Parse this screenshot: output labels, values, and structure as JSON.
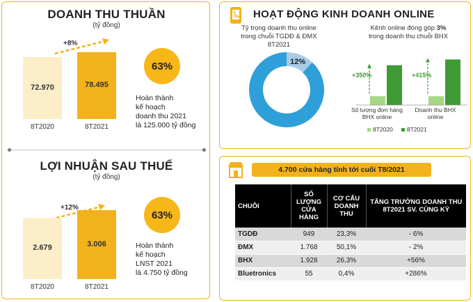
{
  "revenue": {
    "title": "DOANH THU THUẦN",
    "unit": "(tỷ đồng)",
    "growth": "+8%",
    "completion": "63%",
    "note_lines": [
      "Hoàn thành",
      "kế hoạch",
      "doanh thu 2021",
      "là 125.000 tỷ đồng"
    ]
  },
  "profit": {
    "title": "LỢI NHUẬN SAU THUẾ",
    "unit": "(tỷ đồng)",
    "growth": "+12%",
    "completion": "63%",
    "note_lines": [
      "Hoàn thành",
      "kế hoạch",
      "LNST 2021",
      "là 4.750 tỷ đồng"
    ]
  },
  "online": {
    "title": "HOẠT ĐỘNG KINH DOANH ONLINE",
    "share_caption": [
      "Tỷ trọng doanh thu online",
      "trong chuỗi TGDĐ & ĐMX",
      "8T2021"
    ],
    "bhx_caption_1": "Kênh online đóng góp",
    "bhx_caption_pct": "3%",
    "bhx_caption_2": "trong doanh thu chuỗi BHX",
    "growth_orders": "+350%",
    "growth_revenue": "+415%",
    "xlabel_orders": [
      "Số lượng đơn hàng",
      "BHX online"
    ],
    "xlabel_revenue": [
      "Doanh thu BHX",
      "online"
    ]
  },
  "stores": {
    "banner": "4.700 cửa hàng tính tới cuối T8/2021",
    "headers": [
      "CHUỖI",
      "SỐ LƯỢNG CỬA HÀNG",
      "CƠ CẤU DOANH THU",
      "TĂNG TRƯỞNG DOANH THU 8T2021 SV. CÙNG KỲ"
    ],
    "rows": [
      [
        "TGDĐ",
        "949",
        "23,3%",
        "- 6%"
      ],
      [
        "ĐMX",
        "1.768",
        "50,1%",
        "- 2%"
      ],
      [
        "BHX",
        "1.928",
        "26,3%",
        "+56%"
      ],
      [
        "Bluetronics",
        "55",
        "0,4%",
        "+286%"
      ]
    ]
  },
  "chart_data": [
    {
      "type": "bar",
      "title": "DOANH THU THUẦN",
      "subtitle": "(tỷ đồng)",
      "categories": [
        "8T2020",
        "8T2021"
      ],
      "values": [
        72970,
        78495
      ],
      "value_labels": [
        "72.970",
        "78.495"
      ],
      "ylim": [
        0,
        80000
      ],
      "colors": [
        "#fbeec8",
        "#f2b21c"
      ]
    },
    {
      "type": "bar",
      "title": "LỢI NHUẬN SAU THUẾ",
      "subtitle": "(tỷ đồng)",
      "categories": [
        "8T2020",
        "8T2021"
      ],
      "values": [
        2679,
        3006
      ],
      "value_labels": [
        "2.679",
        "3.006"
      ],
      "ylim": [
        0,
        3100
      ],
      "colors": [
        "#fbeec8",
        "#f2b21c"
      ]
    },
    {
      "type": "pie",
      "title": "Tỷ trọng doanh thu online trong chuỗi TGDĐ & ĐMX 8T2021",
      "values": [
        12,
        88
      ],
      "value_labels": [
        "12%",
        ""
      ],
      "colors": [
        "#a9cbe8",
        "#2e9fd8"
      ]
    },
    {
      "type": "bar",
      "categories": [
        "Số lượng đơn hàng BHX online",
        "Doanh thu BHX online"
      ],
      "series": [
        {
          "name": "8T2020",
          "values": [
            1,
            1
          ],
          "color": "#a6d783"
        },
        {
          "name": "8T2021",
          "values": [
            4.5,
            5.15
          ],
          "color": "#3f9b35"
        }
      ],
      "legend": "bottom"
    }
  ]
}
